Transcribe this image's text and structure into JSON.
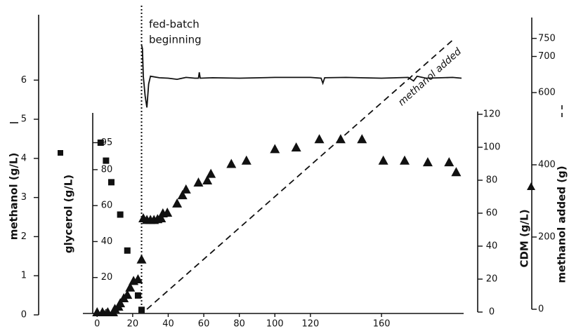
{
  "chart_data": {
    "type": "combo",
    "xlim": [
      -8,
      205
    ],
    "xticks": [
      0,
      20,
      40,
      60,
      80,
      100,
      120,
      160
    ],
    "ylabel": "methanol (g/L)",
    "ylim": [
      0,
      7.6
    ],
    "yticks": [
      0,
      1,
      2,
      3,
      4,
      5,
      6
    ],
    "y2label": "glycerol (g/L)",
    "y2lim": [
      0,
      110
    ],
    "y2ticks": [
      0,
      20,
      40,
      60,
      80,
      95
    ],
    "y3label": "CDM (g/L)",
    "y3lim": [
      0,
      120
    ],
    "y3ticks": [
      0,
      20,
      40,
      60,
      80,
      100,
      120
    ],
    "y4label": "methanol added (g)",
    "y4lim": [
      0,
      800
    ],
    "y4ticks": [
      0,
      200,
      400,
      600,
      700,
      750
    ],
    "event": {
      "x": 25,
      "label_lines": [
        "fed-batch",
        "beginning"
      ]
    },
    "line_annotation": "methanol added",
    "series": [
      {
        "axis": "y",
        "style": "solid",
        "color": "#111111",
        "x": [
          25,
          25.5,
          26,
          27,
          28,
          29,
          30,
          35,
          40,
          45,
          50,
          55,
          57,
          57.5,
          58,
          65,
          80,
          100,
          120,
          126,
          127,
          128,
          140,
          160,
          175,
          178,
          180,
          185,
          200,
          205
        ],
        "values": [
          6.9,
          6.8,
          6.1,
          5.6,
          5.3,
          5.9,
          6.1,
          6.06,
          6.05,
          6.02,
          6.07,
          6.05,
          6.05,
          6.2,
          6.05,
          6.06,
          6.05,
          6.07,
          6.07,
          6.05,
          5.92,
          6.06,
          6.07,
          6.05,
          6.07,
          5.98,
          6.1,
          6.05,
          6.07,
          6.05
        ]
      },
      {
        "axis": "y2",
        "style": "square",
        "color": "#111111",
        "x": [
          2,
          5,
          8,
          13,
          17,
          23,
          25
        ],
        "values": [
          95,
          85,
          73,
          55,
          35,
          10,
          2
        ]
      },
      {
        "axis": "y3",
        "style": "triangle",
        "color": "#111111",
        "x": [
          0,
          3,
          6,
          9,
          10,
          12,
          13,
          15,
          17,
          18.6,
          20.5,
          23,
          25,
          26,
          28,
          30,
          32,
          34,
          36,
          37,
          39.5,
          45,
          48,
          50,
          57,
          62,
          64,
          75.5,
          84,
          100,
          112,
          125,
          137,
          149,
          161,
          173,
          186,
          198,
          202
        ],
        "values": [
          0,
          0,
          0,
          0,
          2,
          3.4,
          5.5,
          8.5,
          10.6,
          15,
          19,
          20,
          32,
          57,
          56,
          56,
          56,
          56.5,
          57,
          60,
          60.4,
          66,
          71,
          74.5,
          78.7,
          80,
          84,
          90,
          92,
          99,
          100,
          105,
          105,
          105,
          92,
          92,
          91,
          91,
          85
        ]
      },
      {
        "axis": "y4",
        "style": "dashed",
        "color": "#111111",
        "x": [
          28,
          200
        ],
        "values": [
          0,
          745
        ]
      }
    ]
  }
}
